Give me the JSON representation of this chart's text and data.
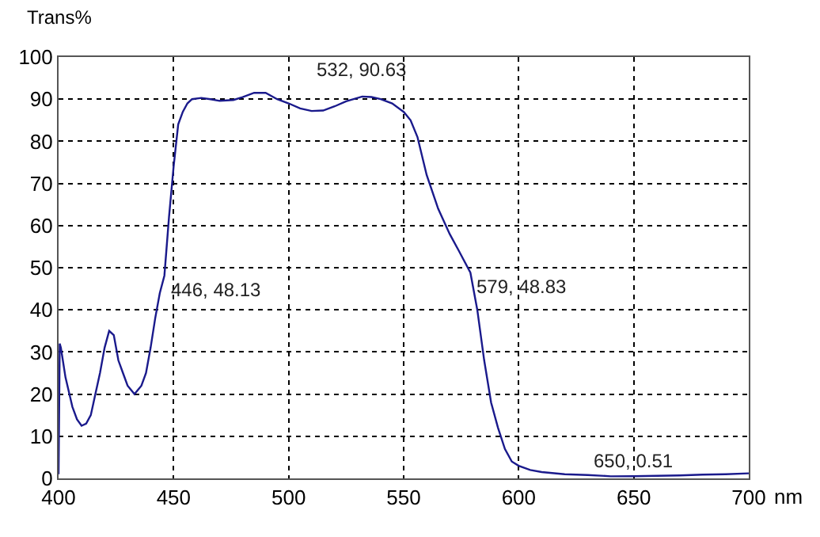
{
  "chart_data": {
    "type": "line",
    "xlabel": "nm",
    "ylabel": "Trans%",
    "xlim": [
      400,
      700
    ],
    "xticks": [
      400,
      450,
      500,
      550,
      600,
      650,
      700
    ],
    "ylim": [
      0,
      100
    ],
    "yticks": [
      0,
      10,
      20,
      30,
      40,
      50,
      60,
      70,
      80,
      90,
      100
    ],
    "grid": true,
    "marker": "none",
    "line_style": "solid",
    "series": [
      {
        "color": "#1a1a8c",
        "x": [
          400,
          400.5,
          401,
          403,
          406,
          408,
          410,
          412,
          414,
          416,
          418,
          420,
          422,
          424,
          426,
          428,
          430,
          433,
          436,
          438,
          440,
          442,
          444,
          446,
          448,
          450,
          452,
          454,
          456,
          458,
          462,
          466,
          470,
          476,
          480,
          485,
          490,
          495,
          500,
          505,
          510,
          515,
          520,
          525,
          532,
          536,
          540,
          545,
          550,
          553,
          556,
          560,
          565,
          570,
          574,
          579,
          582,
          585,
          588,
          591,
          594,
          597,
          600,
          605,
          610,
          620,
          630,
          640,
          650,
          660,
          670,
          680,
          690,
          700
        ],
        "values": [
          1,
          32,
          31,
          24,
          17,
          14,
          12.5,
          13,
          15,
          20,
          25,
          31,
          35,
          34,
          28,
          25,
          22,
          20,
          22,
          25,
          31,
          38,
          44,
          48.13,
          62,
          74,
          84,
          87,
          89,
          90,
          90.3,
          90,
          89.6,
          89.8,
          90.5,
          91.5,
          91.5,
          90,
          89,
          87.8,
          87.2,
          87.3,
          88.3,
          89.5,
          90.63,
          90.5,
          90,
          89,
          87,
          85,
          81,
          72,
          64,
          58,
          54,
          48.83,
          40,
          28,
          18,
          12,
          7,
          4,
          3,
          2,
          1.5,
          1,
          0.8,
          0.5,
          0.51,
          0.6,
          0.7,
          0.9,
          1,
          1.2
        ]
      }
    ],
    "annotations": [
      {
        "text": "532, 90.63",
        "x": 532,
        "y": 90.63
      },
      {
        "text": "446, 48.13",
        "x": 446,
        "y": 48.13
      },
      {
        "text": "579, 48.83",
        "x": 579,
        "y": 48.83
      },
      {
        "text": "650, 0.51",
        "x": 650,
        "y": 0.51
      }
    ]
  }
}
